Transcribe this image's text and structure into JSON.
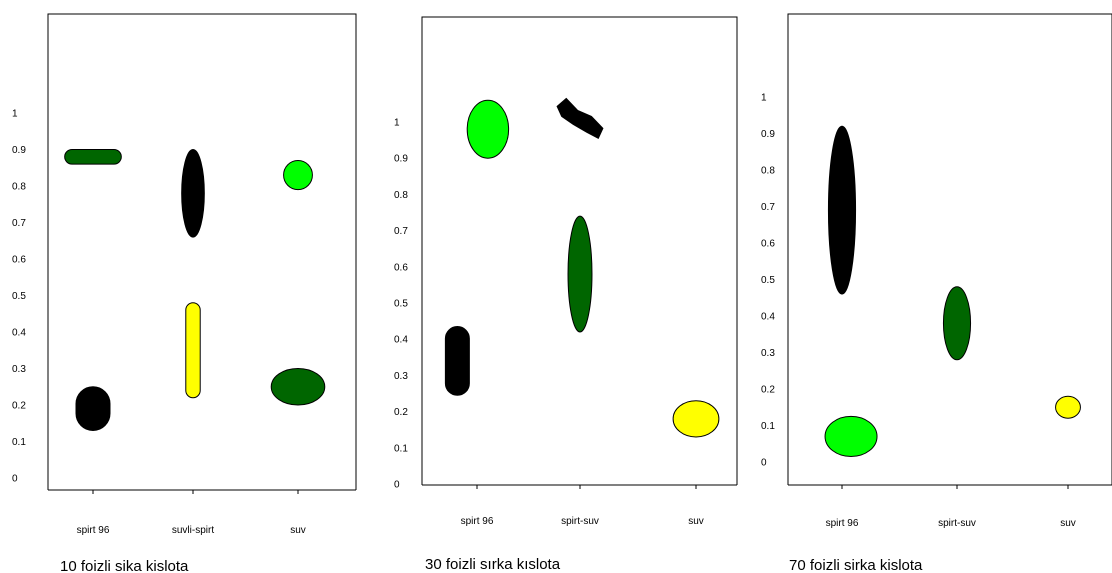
{
  "colors": {
    "black": "#000000",
    "dark_green": "#006600",
    "light_green": "#00ff00",
    "yellow": "#ffff00"
  },
  "chart_data": [
    {
      "type": "scatter",
      "caption": "10 foizli sika kislota",
      "categories": [
        "spirt 96",
        "suvli-spirt",
        "suv"
      ],
      "y_ticks": [
        "0",
        "0.1",
        "0.2",
        "0.3",
        "0.4",
        "0.5",
        "0.6",
        "0.7",
        "0.8",
        "0.9",
        "1"
      ],
      "ylim": [
        0,
        1
      ],
      "spots": [
        {
          "category": "spirt 96",
          "y": 0.88,
          "y_from": 0.86,
          "y_to": 0.9,
          "color": "dark_green",
          "shape": "pill",
          "width": 0.55
        },
        {
          "category": "spirt 96",
          "y": 0.19,
          "y_from": 0.13,
          "y_to": 0.25,
          "color": "black",
          "shape": "pill",
          "width": 0.33
        },
        {
          "category": "suvli-spirt",
          "y": 0.78,
          "y_from": 0.66,
          "y_to": 0.9,
          "color": "black",
          "shape": "ellipse",
          "width": 0.22
        },
        {
          "category": "suvli-spirt",
          "y": 0.35,
          "y_from": 0.22,
          "y_to": 0.48,
          "color": "yellow",
          "shape": "pill",
          "width": 0.14
        },
        {
          "category": "suv",
          "y": 0.83,
          "y_from": 0.79,
          "y_to": 0.87,
          "color": "light_green",
          "shape": "ellipse",
          "width": 0.28
        },
        {
          "category": "suv",
          "y": 0.25,
          "y_from": 0.2,
          "y_to": 0.3,
          "color": "dark_green",
          "shape": "ellipse",
          "width": 0.52
        }
      ]
    },
    {
      "type": "scatter",
      "caption": "30 foizli sırka kıslota",
      "categories": [
        "spirt 96",
        "spirt-suv",
        "suv"
      ],
      "y_ticks": [
        "0",
        "0.1",
        "0.2",
        "0.3",
        "0.4",
        "0.5",
        "0.6",
        "0.7",
        "0.8",
        "0.9",
        "1"
      ],
      "ylim": [
        0,
        1
      ],
      "spots": [
        {
          "category": "spirt 96",
          "y": 0.98,
          "y_from": 0.9,
          "y_to": 1.06,
          "color": "light_green",
          "shape": "ellipse",
          "width": 0.38,
          "x_shift": 0.1
        },
        {
          "category": "spirt 96",
          "y": 0.34,
          "y_from": 0.25,
          "y_to": 0.44,
          "color": "black",
          "shape": "pill",
          "width": 0.22,
          "x_shift": -0.18
        },
        {
          "category": "spirt-suv",
          "y": 1.01,
          "y_from": 0.96,
          "y_to": 1.07,
          "color": "black",
          "shape": "blob",
          "width": 0.42
        },
        {
          "category": "spirt-suv",
          "y": 0.58,
          "y_from": 0.42,
          "y_to": 0.74,
          "color": "dark_green",
          "shape": "ellipse",
          "width": 0.22
        },
        {
          "category": "suv",
          "y": 0.18,
          "y_from": 0.13,
          "y_to": 0.23,
          "color": "yellow",
          "shape": "ellipse",
          "width": 0.42
        }
      ]
    },
    {
      "type": "scatter",
      "caption": "70 foizli sirka kislota",
      "categories": [
        "spirt 96",
        "spirt-suv",
        "suv"
      ],
      "y_ticks": [
        "0",
        "0.1",
        "0.2",
        "0.3",
        "0.4",
        "0.5",
        "0.6",
        "0.7",
        "0.8",
        "0.9",
        "1"
      ],
      "ylim": [
        0,
        1
      ],
      "spots": [
        {
          "category": "spirt 96",
          "y": 0.69,
          "y_from": 0.46,
          "y_to": 0.92,
          "color": "black",
          "shape": "ellipse",
          "width": 0.24
        },
        {
          "category": "spirt 96",
          "y": 0.07,
          "y_from": 0.02,
          "y_to": 0.13,
          "color": "light_green",
          "shape": "ellipse",
          "width": 0.46,
          "x_shift": 0.08
        },
        {
          "category": "spirt-suv",
          "y": 0.38,
          "y_from": 0.28,
          "y_to": 0.48,
          "color": "dark_green",
          "shape": "ellipse",
          "width": 0.24
        },
        {
          "category": "suv",
          "y": 0.15,
          "y_from": 0.12,
          "y_to": 0.18,
          "color": "yellow",
          "shape": "ellipse",
          "width": 0.22
        }
      ]
    }
  ]
}
